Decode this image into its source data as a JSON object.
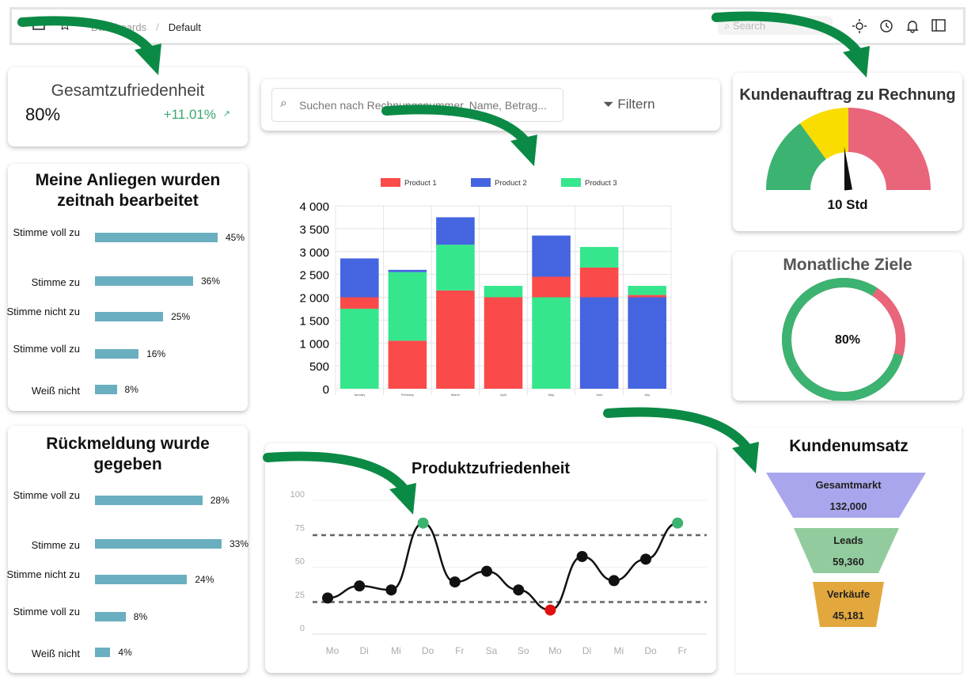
{
  "topbar": {
    "breadcrumb": [
      "Dashboards",
      "Default"
    ],
    "search_placeholder": "Search",
    "icons": [
      "sidebar-icon",
      "star-icon",
      "sun-icon",
      "history-icon",
      "bell-icon",
      "panel-icon"
    ]
  },
  "satisfaction": {
    "title": "Gesamtzufriedenheit",
    "value": "80%",
    "change": "+11.01%",
    "change_color": "#3aa76d"
  },
  "issues": {
    "title": "Meine Anliegen wurden zeitnah bearbeitet",
    "items": [
      {
        "label": "Stimme voll zu",
        "value": 45,
        "text": "45%"
      },
      {
        "label": "Stimme zu",
        "value": 36,
        "text": "36%"
      },
      {
        "label": "Stimme nicht zu",
        "value": 25,
        "text": "25%"
      },
      {
        "label": "Stimme voll zu",
        "value": 16,
        "text": "16%"
      },
      {
        "label": "Weiß nicht",
        "value": 8,
        "text": "8%"
      }
    ]
  },
  "feedback": {
    "title": "Rückmeldung wurde gegeben",
    "items": [
      {
        "label": "Stimme voll zu",
        "value": 28,
        "text": "28%"
      },
      {
        "label": "Stimme zu",
        "value": 33,
        "text": "33%"
      },
      {
        "label": "Stimme nicht zu",
        "value": 24,
        "text": "24%"
      },
      {
        "label": "Stimme voll zu",
        "value": 8,
        "text": "8%"
      },
      {
        "label": "Weiß nicht",
        "value": 4,
        "text": "4%"
      }
    ]
  },
  "search": {
    "placeholder": "Suchen nach Rechnungsnummer, Name, Betrag...",
    "filter_label": "Filtern"
  },
  "chart_data": [
    {
      "type": "bar",
      "stacked": true,
      "categories": [
        "January",
        "February",
        "March",
        "April",
        "May",
        "June",
        "July"
      ],
      "ylim": [
        0,
        4000
      ],
      "yticks": [
        "0",
        "500",
        "1 000",
        "1 500",
        "2 000",
        "2 500",
        "3 000",
        "3 500",
        "4 000"
      ],
      "grid": true,
      "legend": "top",
      "series": [
        {
          "name": "Product 1",
          "color": "#fa4a4a",
          "values": [
            250,
            1050,
            2150,
            2000,
            450,
            650,
            50
          ]
        },
        {
          "name": "Product 2",
          "color": "#4565e0",
          "values": [
            850,
            50,
            600,
            0,
            900,
            2000,
            2000
          ]
        },
        {
          "name": "Product 3",
          "color": "#35e68c",
          "values": [
            1750,
            1500,
            1000,
            250,
            2000,
            450,
            200
          ]
        }
      ],
      "stack_order": [
        [
          2,
          0,
          1
        ],
        [
          0,
          2,
          1
        ],
        [
          0,
          2,
          1
        ],
        [
          0,
          2,
          1
        ],
        [
          2,
          0,
          1
        ],
        [
          1,
          0,
          2
        ],
        [
          1,
          0,
          2
        ]
      ]
    },
    {
      "type": "line",
      "title": "Produktzufriedenheit",
      "categories": [
        "Mo",
        "Di",
        "Mi",
        "Do",
        "Fr",
        "Sa",
        "So",
        "Mo",
        "Di",
        "Mi",
        "Do",
        "Fr"
      ],
      "yticks": [
        "0",
        "25",
        "50",
        "75",
        "100"
      ],
      "ylim": [
        0,
        100
      ],
      "values": [
        27,
        36,
        33,
        83,
        39,
        47,
        33,
        18,
        58,
        40,
        56,
        83
      ],
      "thresholds": [
        74,
        24
      ],
      "high_color": "#3cb371",
      "low_color": "#e01010"
    },
    {
      "type": "gauge",
      "title": "Kundenauftrag zu Rechnung",
      "value_label": "10 Std",
      "segments": [
        {
          "to": 0.3,
          "color": "#3cb371"
        },
        {
          "to": 0.5,
          "color": "#f9dc00"
        },
        {
          "to": 1,
          "color": "#e8657a"
        }
      ],
      "needle": 0.47
    },
    {
      "type": "pie",
      "title": "Monatliche Ziele",
      "value": 80,
      "label": "80%",
      "colors": [
        "#3cb371",
        "#e8657a"
      ]
    },
    {
      "type": "funnel",
      "title": "Kundenumsatz",
      "stages": [
        {
          "label": "Gesamtmarkt",
          "value": "132,000",
          "color": "#a9a6ee"
        },
        {
          "label": "Leads",
          "value": "59,360",
          "color": "#92cc9e"
        },
        {
          "label": "Verkäufe",
          "value": "45,181",
          "color": "#e3a83d"
        }
      ]
    }
  ]
}
